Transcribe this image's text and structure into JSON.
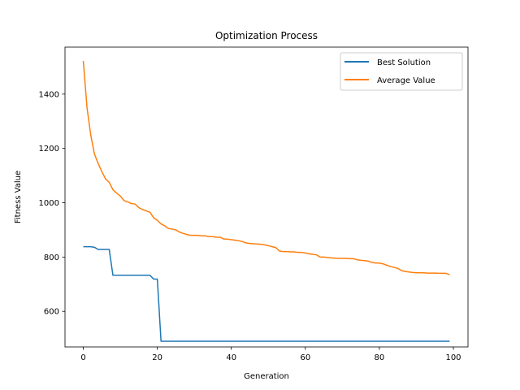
{
  "chart_data": {
    "type": "line",
    "title": "Optimization Process",
    "xlabel": "Generation",
    "ylabel": "Fitness Value",
    "xlim": [
      -4.95,
      103.95
    ],
    "ylim": [
      469,
      1573
    ],
    "xticks": [
      0,
      20,
      40,
      60,
      80,
      100
    ],
    "yticks": [
      600,
      800,
      1000,
      1200,
      1400
    ],
    "grid": false,
    "legend_position": "top-right",
    "x": [
      0,
      1,
      2,
      3,
      4,
      5,
      6,
      7,
      8,
      9,
      10,
      11,
      12,
      13,
      14,
      15,
      16,
      17,
      18,
      19,
      20,
      21,
      22,
      23,
      24,
      25,
      26,
      27,
      28,
      29,
      30,
      31,
      32,
      33,
      34,
      35,
      36,
      37,
      38,
      39,
      40,
      41,
      42,
      43,
      44,
      45,
      46,
      47,
      48,
      49,
      50,
      51,
      52,
      53,
      54,
      55,
      56,
      57,
      58,
      59,
      60,
      61,
      62,
      63,
      64,
      65,
      66,
      67,
      68,
      69,
      70,
      71,
      72,
      73,
      74,
      75,
      76,
      77,
      78,
      79,
      80,
      81,
      82,
      83,
      84,
      85,
      86,
      87,
      88,
      89,
      90,
      91,
      92,
      93,
      94,
      95,
      96,
      97,
      98,
      99
    ],
    "series": [
      {
        "name": "Best Solution",
        "color": "#1f77b4",
        "values": [
          838,
          838,
          838,
          836,
          828,
          828,
          828,
          828,
          733,
          733,
          733,
          733,
          733,
          733,
          733,
          733,
          733,
          733,
          733,
          719,
          719,
          490,
          490,
          490,
          490,
          490,
          490,
          490,
          490,
          490,
          490,
          490,
          490,
          490,
          490,
          490,
          490,
          490,
          490,
          490,
          490,
          490,
          490,
          490,
          490,
          490,
          490,
          490,
          490,
          490,
          490,
          490,
          490,
          490,
          490,
          490,
          490,
          490,
          490,
          490,
          490,
          490,
          490,
          490,
          490,
          490,
          490,
          490,
          490,
          490,
          490,
          490,
          490,
          490,
          490,
          490,
          490,
          490,
          490,
          490,
          490,
          490,
          490,
          490,
          490,
          490,
          490,
          490,
          490,
          490,
          490,
          490,
          490,
          490,
          490,
          490,
          490,
          490,
          490,
          490
        ]
      },
      {
        "name": "Average Value",
        "color": "#ff7f0e",
        "values": [
          1522,
          1350,
          1250,
          1180,
          1145,
          1115,
          1088,
          1075,
          1048,
          1035,
          1025,
          1008,
          1003,
          997,
          995,
          982,
          975,
          970,
          965,
          945,
          935,
          922,
          915,
          905,
          903,
          900,
          892,
          887,
          883,
          880,
          880,
          880,
          878,
          878,
          875,
          875,
          873,
          873,
          866,
          866,
          864,
          862,
          860,
          857,
          852,
          850,
          849,
          848,
          847,
          845,
          842,
          838,
          835,
          822,
          820,
          820,
          819,
          819,
          817,
          817,
          815,
          812,
          810,
          808,
          800,
          800,
          798,
          797,
          796,
          795,
          795,
          795,
          794,
          794,
          790,
          788,
          787,
          785,
          780,
          778,
          778,
          775,
          770,
          765,
          762,
          758,
          750,
          747,
          745,
          743,
          742,
          742,
          742,
          741,
          741,
          741,
          740,
          740,
          740,
          735
        ]
      }
    ]
  }
}
